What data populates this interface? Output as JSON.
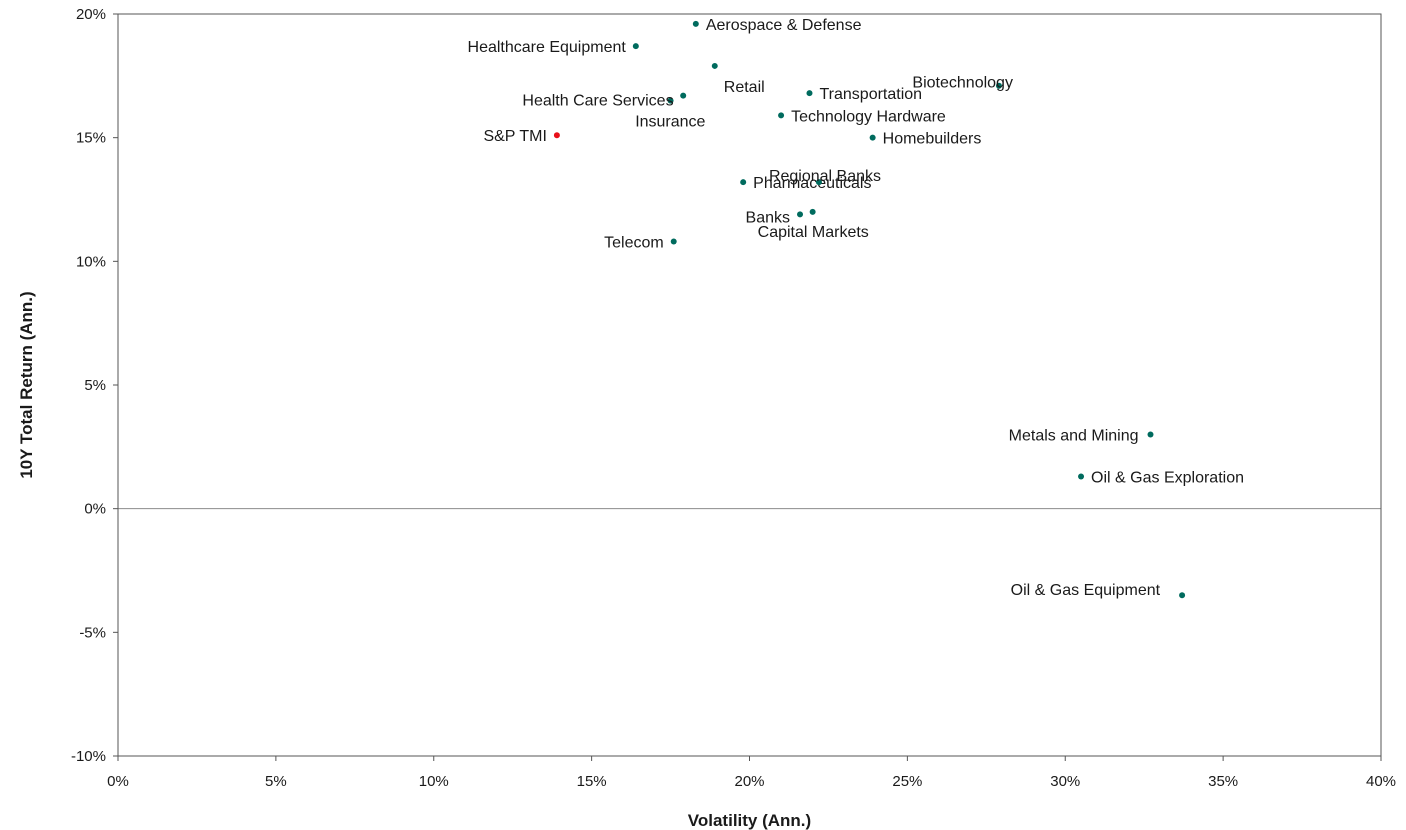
{
  "chart_data": {
    "type": "scatter",
    "title": "",
    "xlabel": "Volatility (Ann.)",
    "ylabel": "10Y Total Return (Ann.)",
    "xlim": [
      0,
      40
    ],
    "ylim": [
      -10,
      20
    ],
    "x_ticks": [
      "0%",
      "5%",
      "10%",
      "15%",
      "20%",
      "25%",
      "30%",
      "35%",
      "40%"
    ],
    "y_ticks": [
      "-10%",
      "-5%",
      "0%",
      "5%",
      "10%",
      "15%",
      "20%"
    ],
    "grid": false,
    "legend": "none",
    "colors": {
      "sector": "#006b5e",
      "benchmark": "#e8101a"
    },
    "points": [
      {
        "label": "Aerospace & Defense",
        "x": 18.3,
        "y": 19.6,
        "kind": "sector"
      },
      {
        "label": "Healthcare Equipment",
        "x": 16.4,
        "y": 18.7,
        "kind": "sector"
      },
      {
        "label": "Retail",
        "x": 18.9,
        "y": 17.9,
        "kind": "sector"
      },
      {
        "label": "Health Care Services",
        "x": 17.5,
        "y": 16.5,
        "kind": "sector"
      },
      {
        "label": "Insurance",
        "x": 17.9,
        "y": 16.7,
        "kind": "sector"
      },
      {
        "label": "Transportation",
        "x": 21.9,
        "y": 16.8,
        "kind": "sector"
      },
      {
        "label": "Biotechnology",
        "x": 27.9,
        "y": 17.1,
        "kind": "sector"
      },
      {
        "label": "Technology Hardware",
        "x": 21.0,
        "y": 15.9,
        "kind": "sector"
      },
      {
        "label": "Homebuilders",
        "x": 23.9,
        "y": 15.0,
        "kind": "sector"
      },
      {
        "label": "S&P TMI",
        "x": 13.9,
        "y": 15.1,
        "kind": "benchmark"
      },
      {
        "label": "Pharmaceuticals",
        "x": 19.8,
        "y": 13.2,
        "kind": "sector"
      },
      {
        "label": "Regional Banks",
        "x": 22.2,
        "y": 13.2,
        "kind": "sector"
      },
      {
        "label": "Banks",
        "x": 21.6,
        "y": 11.9,
        "kind": "sector"
      },
      {
        "label": "Capital Markets",
        "x": 22.0,
        "y": 12.0,
        "kind": "sector"
      },
      {
        "label": "Telecom",
        "x": 17.6,
        "y": 10.8,
        "kind": "sector"
      },
      {
        "label": "Metals and Mining",
        "x": 32.7,
        "y": 3.0,
        "kind": "sector"
      },
      {
        "label": "Oil & Gas Exploration",
        "x": 30.5,
        "y": 1.3,
        "kind": "sector"
      },
      {
        "label": "Oil & Gas Equipment",
        "x": 33.7,
        "y": -3.5,
        "kind": "sector"
      }
    ]
  }
}
